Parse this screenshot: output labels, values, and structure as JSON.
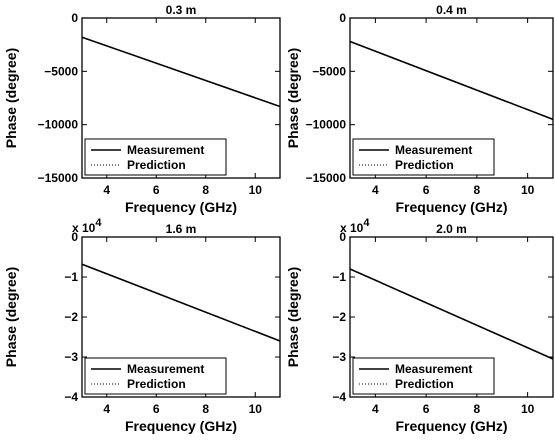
{
  "chart_data": [
    {
      "type": "line",
      "title": "0.3 m",
      "xlabel": "Frequency (GHz)",
      "ylabel": "Phase (degree)",
      "xlim": [
        3,
        11
      ],
      "ylim": [
        -15000,
        0
      ],
      "xticks": [
        4,
        6,
        8,
        10
      ],
      "yticks": [
        0,
        -5000,
        -10000,
        -15000
      ],
      "ytick_labels": [
        "0",
        "−5000",
        "−10000",
        "−15000"
      ],
      "y_multiplier": "",
      "legend": {
        "position": "lower-left"
      },
      "series": [
        {
          "name": "Measurement",
          "style": "solid",
          "x": [
            3,
            11
          ],
          "y": [
            -1800,
            -8300
          ]
        },
        {
          "name": "Prediction",
          "style": "dotted",
          "x": [
            3,
            11
          ],
          "y": [
            -1800,
            -8300
          ]
        }
      ]
    },
    {
      "type": "line",
      "title": "0.4 m",
      "xlabel": "Frequency (GHz)",
      "ylabel": "Phase (degree)",
      "xlim": [
        3,
        11
      ],
      "ylim": [
        -15000,
        0
      ],
      "xticks": [
        4,
        6,
        8,
        10
      ],
      "yticks": [
        0,
        -5000,
        -10000,
        -15000
      ],
      "ytick_labels": [
        "0",
        "−5000",
        "−10000",
        "−15000"
      ],
      "y_multiplier": "",
      "legend": {
        "position": "lower-left"
      },
      "series": [
        {
          "name": "Measurement",
          "style": "solid",
          "x": [
            3,
            11
          ],
          "y": [
            -2200,
            -9500
          ]
        },
        {
          "name": "Prediction",
          "style": "dotted",
          "x": [
            3,
            11
          ],
          "y": [
            -2200,
            -9500
          ]
        }
      ]
    },
    {
      "type": "line",
      "title": "1.6 m",
      "xlabel": "Frequency (GHz)",
      "ylabel": "Phase (degree)",
      "xlim": [
        3,
        11
      ],
      "ylim": [
        -40000,
        0
      ],
      "xticks": [
        4,
        6,
        8,
        10
      ],
      "yticks": [
        0,
        -10000,
        -20000,
        -30000,
        -40000
      ],
      "ytick_labels": [
        "0",
        "−1",
        "−2",
        "−3",
        "−4"
      ],
      "y_multiplier": "x 10",
      "y_multiplier_exp": "4",
      "legend": {
        "position": "lower-left"
      },
      "series": [
        {
          "name": "Measurement",
          "style": "solid",
          "x": [
            3,
            11
          ],
          "y": [
            -6800,
            -26000
          ]
        },
        {
          "name": "Prediction",
          "style": "dotted",
          "x": [
            3,
            11
          ],
          "y": [
            -6800,
            -26000
          ]
        }
      ]
    },
    {
      "type": "line",
      "title": "2.0 m",
      "xlabel": "Frequency (GHz)",
      "ylabel": "Phase (degree)",
      "xlim": [
        3,
        11
      ],
      "ylim": [
        -40000,
        0
      ],
      "xticks": [
        4,
        6,
        8,
        10
      ],
      "yticks": [
        0,
        -10000,
        -20000,
        -30000,
        -40000
      ],
      "ytick_labels": [
        "0",
        "−1",
        "−2",
        "−3",
        "−4"
      ],
      "y_multiplier": "x 10",
      "y_multiplier_exp": "4",
      "legend": {
        "position": "lower-left"
      },
      "series": [
        {
          "name": "Measurement",
          "style": "solid",
          "x": [
            3,
            11
          ],
          "y": [
            -8000,
            -30500
          ]
        },
        {
          "name": "Prediction",
          "style": "dotted",
          "x": [
            3,
            11
          ],
          "y": [
            -8000,
            -30500
          ]
        }
      ]
    }
  ]
}
